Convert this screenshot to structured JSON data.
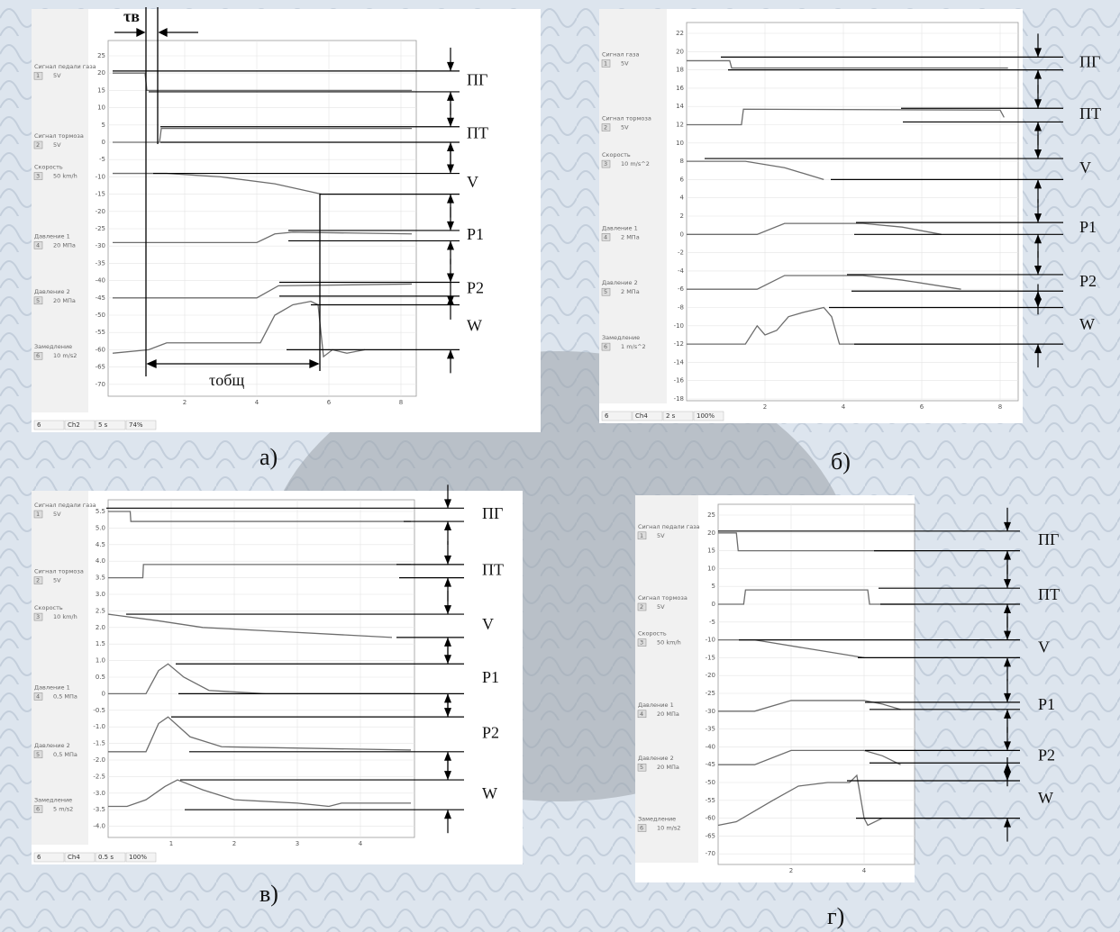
{
  "panels": [
    {
      "caption": "а)",
      "yticks": [
        "25",
        "20",
        "15",
        "10",
        "5",
        "0",
        "-5",
        "-10",
        "-15",
        "-20",
        "-25",
        "-30",
        "-35",
        "-40",
        "-45",
        "-50",
        "-55",
        "-60",
        "-65",
        "-70"
      ],
      "xticks": [
        "2",
        "4",
        "6",
        "8"
      ],
      "channels": [
        {
          "name": "Сигнал педали газа",
          "num": "1",
          "scale": "5V"
        },
        {
          "name": "Сигнал тормоза",
          "num": "2",
          "scale": "5V"
        },
        {
          "name": "Скорость",
          "num": "3",
          "scale": "50 km/h"
        },
        {
          "name": "Давление 1",
          "num": "4",
          "scale": "20 МПа"
        },
        {
          "name": "Давление 2",
          "num": "5",
          "scale": "20 МПа"
        },
        {
          "name": "Замедление",
          "num": "6",
          "scale": "10 m/s2"
        }
      ],
      "labels": [
        "ПГ",
        "ПТ",
        "V",
        "P1",
        "P2",
        "W"
      ],
      "status": [
        "6",
        "Ch2",
        "5 s",
        "74%"
      ]
    },
    {
      "caption": "б)",
      "yticks": [
        "22",
        "20",
        "18",
        "16",
        "14",
        "12",
        "10",
        "8",
        "6",
        "4",
        "2",
        "0",
        "-2",
        "-4",
        "-6",
        "-8",
        "-10",
        "-12",
        "-14",
        "-16",
        "-18"
      ],
      "xticks": [
        "2",
        "4",
        "6",
        "8"
      ],
      "channels": [
        {
          "name": "Сигнал газа",
          "num": "1",
          "scale": "5V"
        },
        {
          "name": "Сигнал тормоза",
          "num": "2",
          "scale": "5V"
        },
        {
          "name": "Скорость",
          "num": "3",
          "scale": "10 m/s^2"
        },
        {
          "name": "Давление 1",
          "num": "4",
          "scale": "2 МПа"
        },
        {
          "name": "Давление 2",
          "num": "5",
          "scale": "2 МПа"
        },
        {
          "name": "Замедление",
          "num": "6",
          "scale": "1 m/s^2"
        }
      ],
      "labels": [
        "ПГ",
        "ПТ",
        "V",
        "P1",
        "P2",
        "W"
      ],
      "status": [
        "6",
        "Ch4",
        "2 s",
        "100%"
      ]
    },
    {
      "caption": "в)",
      "yticks": [
        "5.5",
        "5.0",
        "4.5",
        "4.0",
        "3.5",
        "3.0",
        "2.5",
        "2.0",
        "1.5",
        "1.0",
        "0.5",
        "0",
        "-0.5",
        "-1.0",
        "-1.5",
        "-2.0",
        "-2.5",
        "-3.0",
        "-3.5",
        "-4.0"
      ],
      "xticks": [
        "1",
        "2",
        "3",
        "4"
      ],
      "channels": [
        {
          "name": "Сигнал педали газа",
          "num": "1",
          "scale": "5V"
        },
        {
          "name": "Сигнал тормоза",
          "num": "2",
          "scale": "5V"
        },
        {
          "name": "Скорость",
          "num": "3",
          "scale": "10 km/h"
        },
        {
          "name": "Давление 1",
          "num": "4",
          "scale": "0,5 МПа"
        },
        {
          "name": "Давление 2",
          "num": "5",
          "scale": "0,5 МПа"
        },
        {
          "name": "Замедление",
          "num": "6",
          "scale": "5 m/s2"
        }
      ],
      "labels": [
        "ПГ",
        "ПТ",
        "V",
        "P1",
        "P2",
        "W"
      ],
      "status": [
        "6",
        "Ch4",
        "0.5 s",
        "100%"
      ]
    },
    {
      "caption": "г)",
      "yticks": [
        "25",
        "20",
        "15",
        "10",
        "5",
        "0",
        "-5",
        "-10",
        "-15",
        "-20",
        "-25",
        "-30",
        "-35",
        "-40",
        "-45",
        "-50",
        "-55",
        "-60",
        "-65",
        "-70"
      ],
      "xticks": [
        "2",
        "4"
      ],
      "channels": [
        {
          "name": "Сигнал педали газа",
          "num": "1",
          "scale": "5V"
        },
        {
          "name": "Сигнал тормоза",
          "num": "2",
          "scale": "5V"
        },
        {
          "name": "Скорость",
          "num": "3",
          "scale": "50 km/h"
        },
        {
          "name": "Давление 1",
          "num": "4",
          "scale": "20 МПа"
        },
        {
          "name": "Давление 2",
          "num": "5",
          "scale": "20 МПа"
        },
        {
          "name": "Замедление",
          "num": "6",
          "scale": "10 m/s2"
        }
      ],
      "labels": [
        "ПГ",
        "ПТ",
        "V",
        "P1",
        "P2",
        "W"
      ],
      "status": []
    }
  ],
  "tau_v": "τв",
  "tau_total": "τобщ"
}
